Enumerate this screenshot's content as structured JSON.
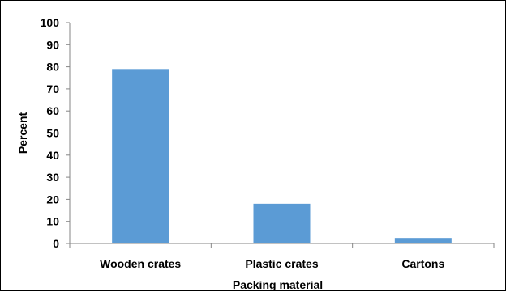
{
  "chart_data": {
    "type": "bar",
    "title": "",
    "xlabel": "Packing material",
    "ylabel": "Percent",
    "categories": [
      "Wooden crates",
      "Plastic crates",
      "Cartons"
    ],
    "values": [
      79,
      18,
      2.5
    ],
    "ylim": [
      0,
      100
    ],
    "yticks": [
      "0",
      "10",
      "20",
      "30",
      "40",
      "50",
      "60",
      "70",
      "80",
      "90",
      "100"
    ],
    "grid": false,
    "legend": "none",
    "bar_color": "#5B9BD5",
    "axis_color": "#868686"
  }
}
